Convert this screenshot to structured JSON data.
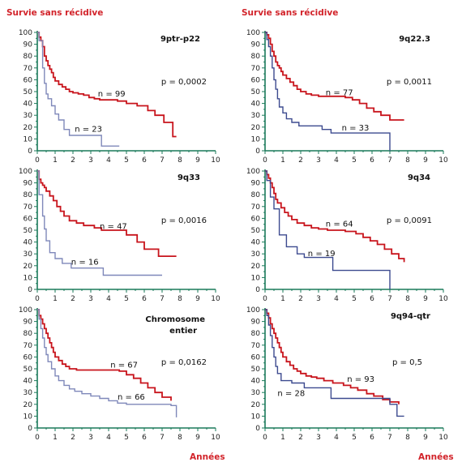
{
  "labels": {
    "y_left": "Survie sans récidive",
    "y_right": "Survie sans récidive",
    "x_left": "Années",
    "x_right": "Années"
  },
  "colors": {
    "red": "#c8141c",
    "blue": "#3c4a8f",
    "grey_blue": "#7f88ba",
    "axis": "#1a7a5a",
    "label_red": "#d2232a"
  },
  "chart_data": [
    {
      "type": "line",
      "title": "9ptr-p22",
      "p_value": "p = 0,0002",
      "xlim": [
        0,
        10
      ],
      "ylim": [
        0,
        100
      ],
      "x_ticks": [
        "0",
        "1",
        "2",
        "3",
        "4",
        "5",
        "6",
        "7",
        "8",
        "9",
        "10"
      ],
      "y_ticks": [
        "0",
        "10",
        "20",
        "30",
        "40",
        "50",
        "60",
        "70",
        "80",
        "90",
        "100"
      ],
      "series": [
        {
          "name": "n = 99",
          "color_key": "red",
          "x": [
            0.1,
            0.2,
            0.3,
            0.4,
            0.5,
            0.6,
            0.7,
            0.8,
            0.9,
            1.0,
            1.2,
            1.4,
            1.6,
            1.8,
            2.0,
            2.3,
            2.6,
            2.9,
            3.2,
            3.5,
            4.5,
            5.0,
            5.6,
            6.2,
            6.6,
            7.1,
            7.6,
            7.8
          ],
          "y": [
            96,
            93,
            88,
            80,
            76,
            72,
            69,
            66,
            62,
            59,
            56,
            54,
            52,
            50,
            49,
            48,
            47,
            45,
            44,
            43,
            42,
            40,
            38,
            34,
            30,
            24,
            12,
            12
          ]
        },
        {
          "name": "n = 23",
          "color_key": "grey_blue",
          "x": [
            0.1,
            0.3,
            0.4,
            0.5,
            0.6,
            0.8,
            1.0,
            1.2,
            1.5,
            1.8,
            3.6,
            4.6
          ],
          "y": [
            93,
            70,
            57,
            48,
            44,
            38,
            31,
            26,
            18,
            13,
            4,
            4
          ]
        }
      ],
      "labels_pos": [
        {
          "text": "n = 99",
          "x": 3.4,
          "y": 46
        },
        {
          "text": "n = 23",
          "x": 2.1,
          "y": 16
        }
      ]
    },
    {
      "type": "line",
      "title": "9q22.3",
      "p_value": "p = 0,0011",
      "xlim": [
        0,
        10
      ],
      "ylim": [
        0,
        100
      ],
      "x_ticks": [
        "0",
        "1",
        "2",
        "3",
        "4",
        "5",
        "6",
        "7",
        "8",
        "9",
        "10"
      ],
      "y_ticks": [
        "0",
        "10",
        "20",
        "30",
        "40",
        "50",
        "60",
        "70",
        "80",
        "90",
        "100"
      ],
      "series": [
        {
          "name": "n = 77",
          "color_key": "red",
          "x": [
            0.1,
            0.2,
            0.3,
            0.4,
            0.5,
            0.6,
            0.7,
            0.8,
            0.9,
            1.0,
            1.2,
            1.4,
            1.6,
            1.8,
            2.0,
            2.3,
            2.6,
            3.0,
            3.5,
            4.5,
            4.9,
            5.3,
            5.7,
            6.1,
            6.5,
            7.0,
            7.8
          ],
          "y": [
            98,
            95,
            90,
            84,
            80,
            75,
            72,
            70,
            67,
            64,
            61,
            58,
            55,
            52,
            50,
            48,
            47,
            46,
            46,
            45,
            43,
            40,
            36,
            33,
            30,
            26,
            26
          ]
        },
        {
          "name": "n = 33",
          "color_key": "blue",
          "x": [
            0.1,
            0.2,
            0.3,
            0.4,
            0.5,
            0.6,
            0.7,
            0.8,
            1.0,
            1.2,
            1.5,
            1.9,
            3.2,
            3.7,
            7.0
          ],
          "y": [
            94,
            88,
            80,
            70,
            60,
            52,
            44,
            37,
            32,
            27,
            24,
            21,
            18,
            15,
            0
          ]
        }
      ],
      "labels_pos": [
        {
          "text": "n = 77",
          "x": 3.4,
          "y": 47
        },
        {
          "text": "n = 33",
          "x": 4.3,
          "y": 17
        }
      ]
    },
    {
      "type": "line",
      "title": "9q33",
      "p_value": "p = 0,0016",
      "xlim": [
        0,
        10
      ],
      "ylim": [
        0,
        100
      ],
      "x_ticks": [
        "0",
        "1",
        "2",
        "3",
        "4",
        "5",
        "6",
        "7",
        "8",
        "9",
        "10"
      ],
      "y_ticks": [
        "0",
        "10",
        "20",
        "30",
        "40",
        "50",
        "60",
        "70",
        "80",
        "90",
        "100"
      ],
      "series": [
        {
          "name": "n = 47",
          "color_key": "red",
          "x": [
            0.1,
            0.2,
            0.3,
            0.4,
            0.5,
            0.7,
            0.9,
            1.1,
            1.3,
            1.5,
            1.8,
            2.2,
            2.6,
            3.2,
            3.6,
            4.0,
            5.0,
            5.6,
            6.0,
            6.8,
            7.8
          ],
          "y": [
            93,
            90,
            88,
            86,
            83,
            79,
            75,
            70,
            66,
            62,
            58,
            56,
            54,
            52,
            50,
            50,
            46,
            40,
            34,
            28,
            28
          ]
        },
        {
          "name": "n = 16",
          "color_key": "grey_blue",
          "x": [
            0.1,
            0.3,
            0.4,
            0.5,
            0.7,
            1.0,
            1.4,
            1.9,
            3.7,
            7.0
          ],
          "y": [
            80,
            62,
            51,
            41,
            31,
            26,
            22,
            18,
            12,
            12
          ]
        }
      ],
      "labels_pos": [
        {
          "text": "n = 47",
          "x": 3.5,
          "y": 51
        },
        {
          "text": "n = 16",
          "x": 1.9,
          "y": 21
        }
      ]
    },
    {
      "type": "line",
      "title": "9q34",
      "p_value": "p = 0,0091",
      "xlim": [
        0,
        10
      ],
      "ylim": [
        0,
        100
      ],
      "x_ticks": [
        "0",
        "1",
        "2",
        "3",
        "4",
        "5",
        "6",
        "7",
        "8",
        "9",
        "10"
      ],
      "y_ticks": [
        "0",
        "10",
        "20",
        "30",
        "40",
        "50",
        "60",
        "70",
        "80",
        "90",
        "100"
      ],
      "series": [
        {
          "name": "n = 64",
          "color_key": "red",
          "x": [
            0.1,
            0.2,
            0.3,
            0.4,
            0.5,
            0.6,
            0.7,
            0.9,
            1.1,
            1.3,
            1.5,
            1.8,
            2.2,
            2.6,
            3.0,
            3.5,
            4.5,
            5.1,
            5.5,
            5.9,
            6.3,
            6.7,
            7.1,
            7.5,
            7.8
          ],
          "y": [
            97,
            94,
            90,
            86,
            81,
            76,
            73,
            69,
            65,
            62,
            59,
            56,
            54,
            52,
            51,
            50,
            49,
            47,
            44,
            41,
            38,
            34,
            30,
            26,
            23
          ]
        },
        {
          "name": "n = 19",
          "color_key": "blue",
          "x": [
            0.1,
            0.3,
            0.5,
            0.8,
            1.2,
            1.8,
            2.2,
            3.8,
            7.0
          ],
          "y": [
            92,
            78,
            68,
            46,
            36,
            30,
            27,
            16,
            0
          ]
        }
      ],
      "labels_pos": [
        {
          "text": "n = 64",
          "x": 3.4,
          "y": 53
        },
        {
          "text": "n = 19",
          "x": 2.4,
          "y": 28
        }
      ]
    },
    {
      "type": "line",
      "title": "Chromosome entier",
      "p_value": "p = 0,0162",
      "xlim": [
        0,
        10
      ],
      "ylim": [
        0,
        100
      ],
      "x_ticks": [
        "0",
        "1",
        "2",
        "3",
        "4",
        "5",
        "6",
        "7",
        "8",
        "9",
        "10"
      ],
      "y_ticks": [
        "0",
        "10",
        "20",
        "30",
        "40",
        "50",
        "60",
        "70",
        "80",
        "90",
        "100"
      ],
      "series": [
        {
          "name": "n = 67",
          "color_key": "red",
          "x": [
            0.1,
            0.2,
            0.3,
            0.4,
            0.5,
            0.6,
            0.7,
            0.8,
            0.9,
            1.0,
            1.2,
            1.4,
            1.6,
            1.8,
            2.2,
            2.8,
            3.3,
            4.0,
            4.6,
            5.0,
            5.4,
            5.8,
            6.2,
            6.6,
            7.0,
            7.5
          ],
          "y": [
            95,
            92,
            88,
            84,
            80,
            76,
            72,
            68,
            64,
            60,
            57,
            54,
            52,
            50,
            49,
            49,
            49,
            49,
            48,
            45,
            42,
            38,
            34,
            30,
            26,
            23
          ]
        },
        {
          "name": "n = 66",
          "color_key": "grey_blue",
          "x": [
            0.1,
            0.2,
            0.3,
            0.4,
            0.5,
            0.6,
            0.8,
            1.0,
            1.2,
            1.5,
            1.8,
            2.1,
            2.5,
            3.0,
            3.5,
            4.0,
            4.5,
            5.0,
            7.5,
            7.8
          ],
          "y": [
            92,
            84,
            76,
            68,
            62,
            56,
            50,
            44,
            40,
            36,
            33,
            31,
            29,
            27,
            25,
            23,
            21,
            20,
            19,
            9
          ]
        }
      ],
      "labels_pos": [
        {
          "text": "n = 67",
          "x": 4.1,
          "y": 51
        },
        {
          "text": "n = 66",
          "x": 4.5,
          "y": 24
        }
      ]
    },
    {
      "type": "line",
      "title": "9q94-qtr",
      "p_value": "p = 0,5",
      "xlim": [
        0,
        10
      ],
      "ylim": [
        0,
        100
      ],
      "x_ticks": [
        "0",
        "1",
        "2",
        "3",
        "4",
        "5",
        "6",
        "7",
        "8",
        "9",
        "10"
      ],
      "y_ticks": [
        "0",
        "10",
        "20",
        "30",
        "40",
        "50",
        "60",
        "70",
        "80",
        "90",
        "100"
      ],
      "series": [
        {
          "name": "n = 93",
          "color_key": "red",
          "x": [
            0.1,
            0.2,
            0.3,
            0.4,
            0.5,
            0.6,
            0.7,
            0.8,
            0.9,
            1.0,
            1.2,
            1.4,
            1.6,
            1.8,
            2.0,
            2.3,
            2.6,
            2.9,
            3.3,
            3.8,
            4.4,
            4.8,
            5.2,
            5.7,
            6.1,
            6.6,
            7.0,
            7.5
          ],
          "y": [
            97,
            93,
            88,
            84,
            80,
            76,
            72,
            68,
            64,
            60,
            56,
            53,
            50,
            48,
            46,
            44,
            43,
            42,
            40,
            38,
            36,
            34,
            32,
            29,
            27,
            24,
            22,
            20
          ]
        },
        {
          "name": "n = 28",
          "color_key": "blue",
          "x": [
            0.1,
            0.2,
            0.3,
            0.4,
            0.5,
            0.6,
            0.7,
            0.9,
            1.5,
            2.2,
            3.7,
            7.0,
            7.4,
            7.8
          ],
          "y": [
            95,
            87,
            78,
            68,
            60,
            52,
            46,
            40,
            38,
            34,
            25,
            20,
            10,
            10
          ]
        }
      ],
      "labels_pos": [
        {
          "text": "n = 93",
          "x": 4.6,
          "y": 39
        },
        {
          "text": "n = 28",
          "x": 0.7,
          "y": 27
        }
      ]
    }
  ]
}
